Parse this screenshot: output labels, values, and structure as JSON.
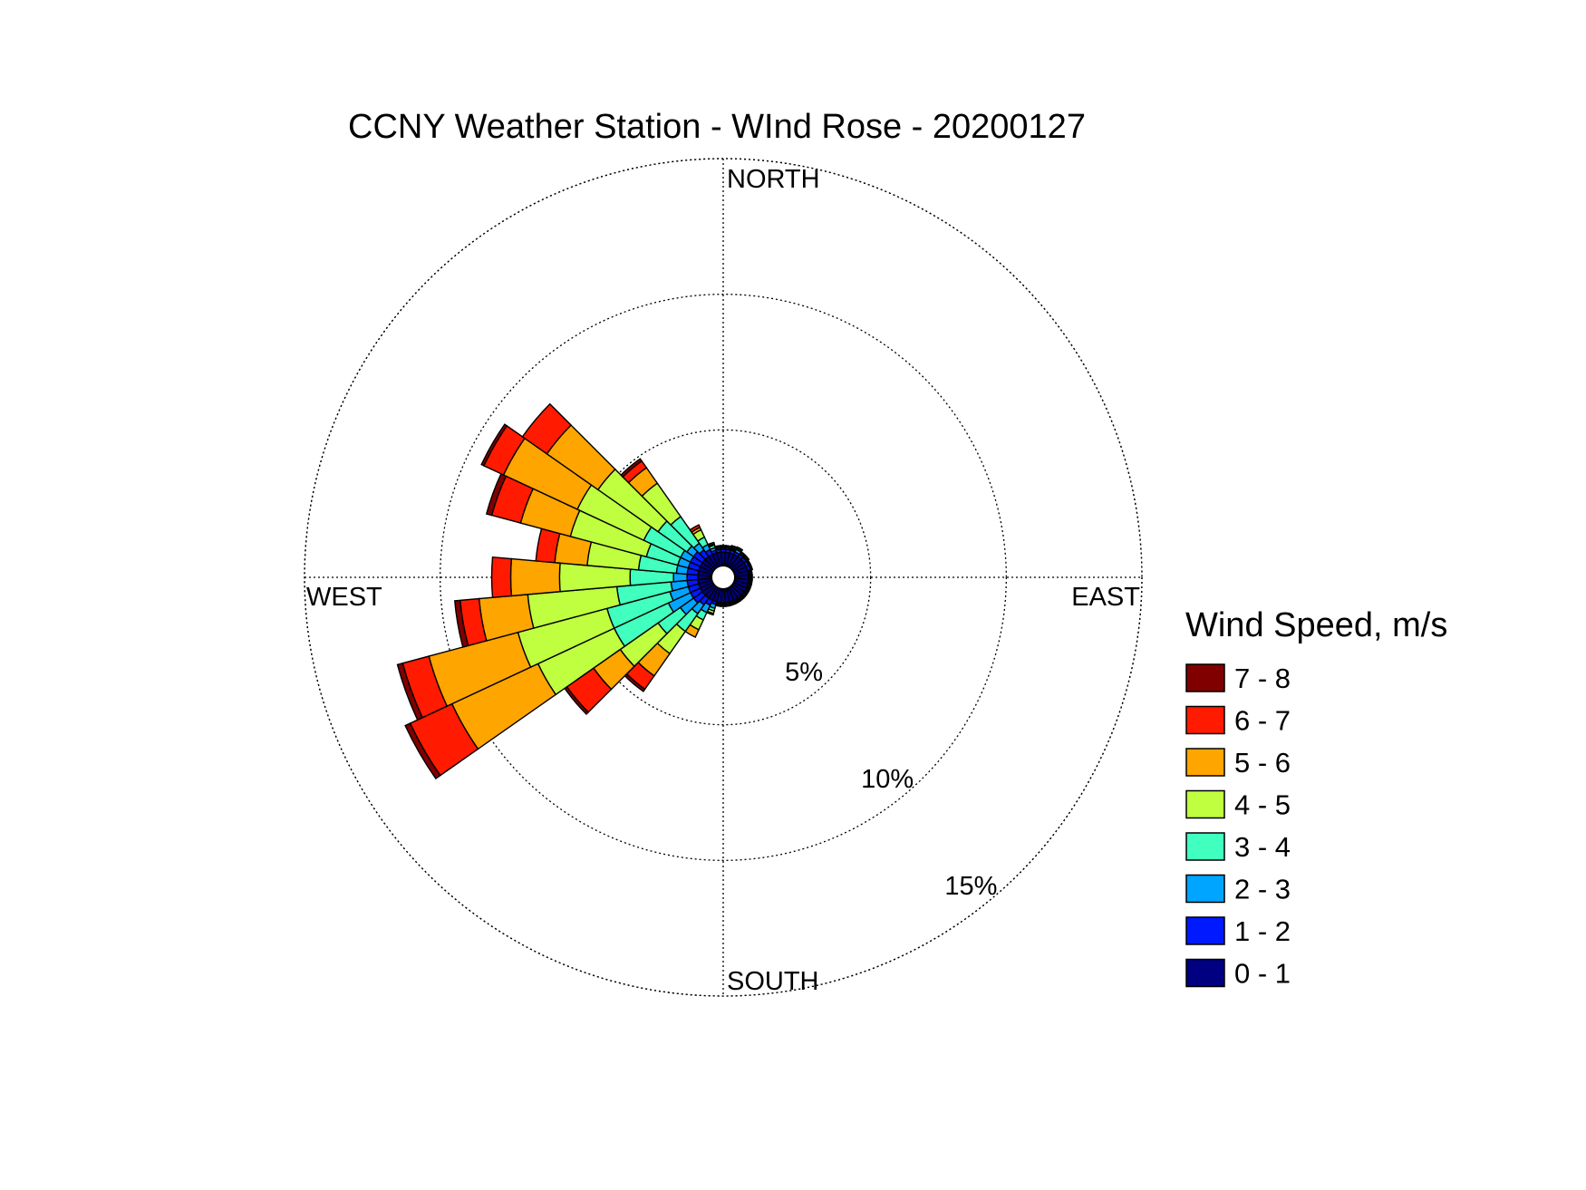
{
  "chart_data": {
    "type": "wind_rose",
    "title": "CCNY Weather Station - WInd Rose - 20200127",
    "directions": [
      "NORTH",
      "EAST",
      "SOUTH",
      "WEST"
    ],
    "radial_ticks": [
      "5%",
      "10%",
      "15%"
    ],
    "radial_values": [
      5,
      10,
      15
    ],
    "rmax": 15,
    "legend_title": "Wind Speed, m/s",
    "speed_bins": [
      {
        "label": "0 - 1",
        "color": "#000080"
      },
      {
        "label": "1 - 2",
        "color": "#0019FF"
      },
      {
        "label": "2 - 3",
        "color": "#00A5FF"
      },
      {
        "label": "3 - 4",
        "color": "#40FFBF"
      },
      {
        "label": "4 - 5",
        "color": "#BFFF40"
      },
      {
        "label": "5 - 6",
        "color": "#FFA500"
      },
      {
        "label": "6 - 7",
        "color": "#FF1A00"
      },
      {
        "label": "7 - 8",
        "color": "#800000"
      }
    ],
    "sectors": [
      {
        "direction_deg": 10,
        "cumulative_pct": [
          0.5,
          0.6,
          0.65,
          0.7,
          0.72,
          0.74,
          0.75,
          0.75
        ]
      },
      {
        "direction_deg": 20,
        "cumulative_pct": [
          0.5,
          0.6,
          0.65,
          0.7,
          0.75,
          0.78,
          0.78,
          0.78
        ]
      },
      {
        "direction_deg": 30,
        "cumulative_pct": [
          0.5,
          0.6,
          0.7,
          0.75,
          0.78,
          0.8,
          0.8,
          0.8
        ]
      },
      {
        "direction_deg": 40,
        "cumulative_pct": [
          0.5,
          0.6,
          0.65,
          0.7,
          0.72,
          0.72,
          0.72,
          0.72
        ]
      },
      {
        "direction_deg": 50,
        "cumulative_pct": [
          0.5,
          0.6,
          0.65,
          0.7,
          0.72,
          0.72,
          0.72,
          0.72
        ]
      },
      {
        "direction_deg": 60,
        "cumulative_pct": [
          0.5,
          0.6,
          0.62,
          0.65,
          0.68,
          0.68,
          0.68,
          0.68
        ]
      },
      {
        "direction_deg": 70,
        "cumulative_pct": [
          0.5,
          0.6,
          0.62,
          0.65,
          0.68,
          0.68,
          0.68,
          0.68
        ]
      },
      {
        "direction_deg": 80,
        "cumulative_pct": [
          0.5,
          0.55,
          0.6,
          0.62,
          0.64,
          0.64,
          0.64,
          0.64
        ]
      },
      {
        "direction_deg": 90,
        "cumulative_pct": [
          0.5,
          0.55,
          0.6,
          0.62,
          0.64,
          0.64,
          0.64,
          0.64
        ]
      },
      {
        "direction_deg": 100,
        "cumulative_pct": [
          0.5,
          0.55,
          0.6,
          0.62,
          0.64,
          0.64,
          0.64,
          0.64
        ]
      },
      {
        "direction_deg": 110,
        "cumulative_pct": [
          0.5,
          0.55,
          0.6,
          0.62,
          0.64,
          0.64,
          0.64,
          0.64
        ]
      },
      {
        "direction_deg": 120,
        "cumulative_pct": [
          0.5,
          0.55,
          0.6,
          0.62,
          0.64,
          0.64,
          0.64,
          0.64
        ]
      },
      {
        "direction_deg": 130,
        "cumulative_pct": [
          0.5,
          0.55,
          0.6,
          0.62,
          0.64,
          0.64,
          0.64,
          0.64
        ]
      },
      {
        "direction_deg": 140,
        "cumulative_pct": [
          0.5,
          0.55,
          0.6,
          0.62,
          0.64,
          0.64,
          0.64,
          0.64
        ]
      },
      {
        "direction_deg": 150,
        "cumulative_pct": [
          0.5,
          0.55,
          0.6,
          0.62,
          0.64,
          0.64,
          0.64,
          0.64
        ]
      },
      {
        "direction_deg": 160,
        "cumulative_pct": [
          0.5,
          0.55,
          0.6,
          0.62,
          0.64,
          0.64,
          0.64,
          0.64
        ]
      },
      {
        "direction_deg": 170,
        "cumulative_pct": [
          0.5,
          0.55,
          0.6,
          0.62,
          0.64,
          0.64,
          0.64,
          0.64
        ]
      },
      {
        "direction_deg": 180,
        "cumulative_pct": [
          0.5,
          0.55,
          0.6,
          0.62,
          0.64,
          0.64,
          0.64,
          0.64
        ]
      },
      {
        "direction_deg": 190,
        "cumulative_pct": [
          0.5,
          0.55,
          0.6,
          0.62,
          0.64,
          0.64,
          0.64,
          0.64
        ]
      },
      {
        "direction_deg": 200,
        "cumulative_pct": [
          0.5,
          0.6,
          0.75,
          0.85,
          0.95,
          1.0,
          1.0,
          1.0
        ]
      },
      {
        "direction_deg": 210,
        "cumulative_pct": [
          0.5,
          0.7,
          1.0,
          1.3,
          1.7,
          2.0,
          2.0,
          2.0
        ]
      },
      {
        "direction_deg": 220,
        "cumulative_pct": [
          0.5,
          0.8,
          1.2,
          2.0,
          3.0,
          4.0,
          4.6,
          4.7
        ]
      },
      {
        "direction_deg": 230,
        "cumulative_pct": [
          0.5,
          0.9,
          1.5,
          2.5,
          4.2,
          5.4,
          6.6,
          6.7
        ]
      },
      {
        "direction_deg": 240,
        "cumulative_pct": [
          0.5,
          0.9,
          1.8,
          4.0,
          7.1,
          10.6,
          12.3,
          12.5
        ]
      },
      {
        "direction_deg": 250,
        "cumulative_pct": [
          0.5,
          0.9,
          1.6,
          4.0,
          7.4,
          10.8,
          11.8,
          12.0
        ]
      },
      {
        "direction_deg": 260,
        "cumulative_pct": [
          0.5,
          0.9,
          1.5,
          3.5,
          6.8,
          8.6,
          9.3,
          9.5
        ]
      },
      {
        "direction_deg": 270,
        "cumulative_pct": [
          0.5,
          0.9,
          1.4,
          3.0,
          5.6,
          7.4,
          8.1,
          8.1
        ]
      },
      {
        "direction_deg": 280,
        "cumulative_pct": [
          0.5,
          0.9,
          1.3,
          2.7,
          4.6,
          5.8,
          6.5,
          6.5
        ]
      },
      {
        "direction_deg": 290,
        "cumulative_pct": [
          0.5,
          0.9,
          1.3,
          2.5,
          5.4,
          7.3,
          8.4,
          8.6
        ]
      },
      {
        "direction_deg": 300,
        "cumulative_pct": [
          0.5,
          0.9,
          1.3,
          2.8,
          5.5,
          8.5,
          9.3,
          9.4
        ]
      },
      {
        "direction_deg": 310,
        "cumulative_pct": [
          0.5,
          0.9,
          1.2,
          2.5,
          5.2,
          7.5,
          8.6,
          8.6
        ]
      },
      {
        "direction_deg": 320,
        "cumulative_pct": [
          0.5,
          0.8,
          1.1,
          2.3,
          3.8,
          4.5,
          4.8,
          4.9
        ]
      },
      {
        "direction_deg": 330,
        "cumulative_pct": [
          0.5,
          0.7,
          0.9,
          1.2,
          1.5,
          1.6,
          1.7,
          1.7
        ]
      },
      {
        "direction_deg": 340,
        "cumulative_pct": [
          0.5,
          0.6,
          0.7,
          0.8,
          0.85,
          0.9,
          0.9,
          0.9
        ]
      },
      {
        "direction_deg": 350,
        "cumulative_pct": [
          0.5,
          0.6,
          0.65,
          0.7,
          0.72,
          0.74,
          0.74,
          0.74
        ]
      },
      {
        "direction_deg": 0,
        "cumulative_pct": [
          0.5,
          0.6,
          0.65,
          0.7,
          0.72,
          0.74,
          0.74,
          0.74
        ]
      }
    ],
    "grid": true,
    "legend_position": "right"
  }
}
